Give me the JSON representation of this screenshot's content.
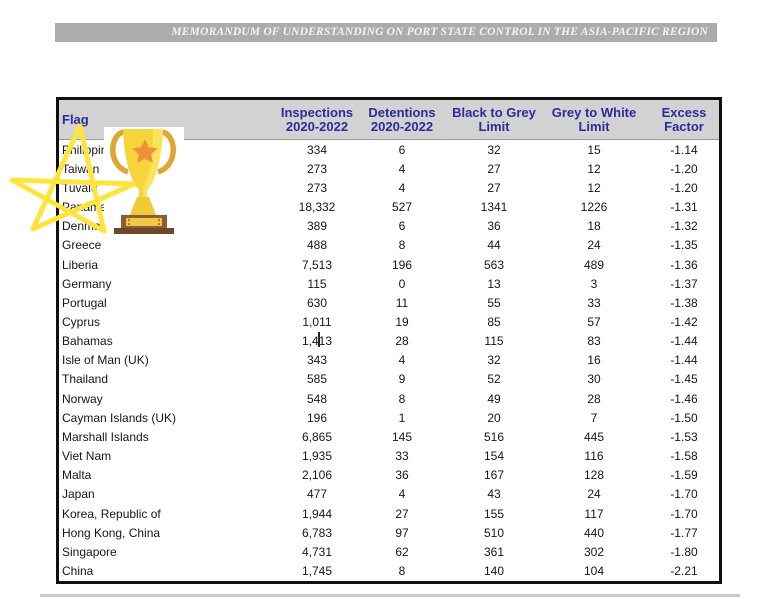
{
  "document": {
    "banner_title": "MEMORANDUM OF UNDERSTANDING ON PORT STATE CONTROL IN THE ASIA-PACIFIC REGION"
  },
  "table": {
    "columns": [
      {
        "line1": "Flag",
        "line2": ""
      },
      {
        "line1": "Inspections",
        "line2": "2020-2022"
      },
      {
        "line1": "Detentions",
        "line2": "2020-2022"
      },
      {
        "line1": "Black to Grey",
        "line2": "Limit"
      },
      {
        "line1": "Grey to White",
        "line2": "Limit"
      },
      {
        "line1": "Excess",
        "line2": "Factor"
      }
    ],
    "rows": [
      [
        "Philippines",
        "334",
        "6",
        "32",
        "15",
        "-1.14"
      ],
      [
        "Taiwan",
        "273",
        "4",
        "27",
        "12",
        "-1.20"
      ],
      [
        "Tuvalu",
        "273",
        "4",
        "27",
        "12",
        "-1.20"
      ],
      [
        "Panama",
        "18,332",
        "527",
        "1341",
        "1226",
        "-1.31"
      ],
      [
        "Denmark",
        "389",
        "6",
        "36",
        "18",
        "-1.32"
      ],
      [
        "Greece",
        "488",
        "8",
        "44",
        "24",
        "-1.35"
      ],
      [
        "Liberia",
        "7,513",
        "196",
        "563",
        "489",
        "-1.36"
      ],
      [
        "Germany",
        "115",
        "0",
        "13",
        "3",
        "-1.37"
      ],
      [
        "Portugal",
        "630",
        "11",
        "55",
        "33",
        "-1.38"
      ],
      [
        "Cyprus",
        "1,011",
        "19",
        "85",
        "57",
        "-1.42"
      ],
      [
        "Bahamas",
        "1,413",
        "28",
        "115",
        "83",
        "-1.44"
      ],
      [
        "Isle of Man (UK)",
        "343",
        "4",
        "32",
        "16",
        "-1.44"
      ],
      [
        "Thailand",
        "585",
        "9",
        "52",
        "30",
        "-1.45"
      ],
      [
        "Norway",
        "548",
        "8",
        "49",
        "28",
        "-1.46"
      ],
      [
        "Cayman Islands (UK)",
        "196",
        "1",
        "20",
        "7",
        "-1.50"
      ],
      [
        "Marshall Islands",
        "6,865",
        "145",
        "516",
        "445",
        "-1.53"
      ],
      [
        "Viet Nam",
        "1,935",
        "33",
        "154",
        "116",
        "-1.58"
      ],
      [
        "Malta",
        "2,106",
        "36",
        "167",
        "128",
        "-1.59"
      ],
      [
        "Japan",
        "477",
        "4",
        "43",
        "24",
        "-1.70"
      ],
      [
        "Korea, Republic of",
        "1,944",
        "27",
        "155",
        "117",
        "-1.70"
      ],
      [
        "Hong Kong, China",
        "6,783",
        "97",
        "510",
        "440",
        "-1.77"
      ],
      [
        "Singapore",
        "4,731",
        "62",
        "361",
        "302",
        "-1.80"
      ],
      [
        "China",
        "1,745",
        "8",
        "140",
        "104",
        "-2.21"
      ]
    ]
  },
  "overlays": {
    "trophy_icon": "gold-trophy-with-star",
    "star_icon": "yellow-star-outline-annotation",
    "text_cursor": "caret-in-bahamas-inspections-cell"
  },
  "colors": {
    "banner_bg": "#acacac",
    "banner_text": "#f4f4f4",
    "header_bg": "#d2d2d2",
    "header_text": "#2b2b9e",
    "table_border": "#101010",
    "body_text": "#161616",
    "star_yellow": "#ffe43c",
    "trophy_gold": "#f6d53c",
    "trophy_star_orange": "#f0903d",
    "trophy_base_brown": "#8c5c33"
  }
}
